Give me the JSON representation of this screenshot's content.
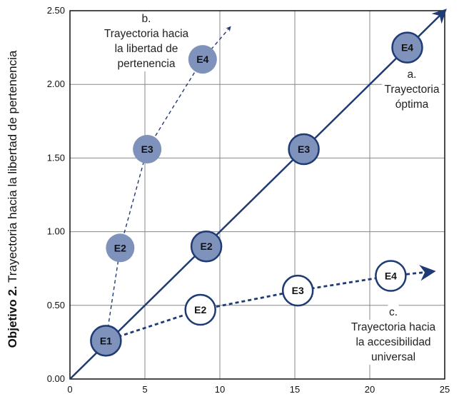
{
  "chart_data": {
    "type": "line",
    "title": "",
    "xlabel": "",
    "ylabel_bold": "Objetivo 2.",
    "ylabel": "Trayectoria hacia la libertad de pertenencia",
    "xlim": [
      0,
      25
    ],
    "ylim": [
      0,
      2.5
    ],
    "xticks": [
      "0",
      "5",
      "10",
      "15",
      "20",
      "25"
    ],
    "xtick_values": [
      0,
      5,
      10,
      15,
      20,
      25
    ],
    "yticks": [
      "0.00",
      "0.50",
      "1.00",
      "1.50",
      "2.00",
      "2.50"
    ],
    "ytick_values": [
      0,
      0.5,
      1,
      1.5,
      2,
      2.5
    ],
    "grid": true,
    "series": [
      {
        "name": "a. Trayectoria óptima",
        "label_lines": [
          "a.",
          "Trayectoria",
          "óptima"
        ],
        "style": "solid",
        "color": "#1f3b73",
        "points": [
          {
            "label": "E1",
            "x": 2.4,
            "y": 0.26
          },
          {
            "label": "E2",
            "x": 9.1,
            "y": 0.9
          },
          {
            "label": "E3",
            "x": 15.6,
            "y": 1.56
          },
          {
            "label": "E4",
            "x": 22.5,
            "y": 2.25
          }
        ],
        "arrow_to": {
          "x": 25,
          "y": 2.5
        }
      },
      {
        "name": "b. Trayectoria hacia la libertad de pertenencia",
        "label_lines": [
          "b.",
          "Trayectoria hacia",
          "la libertad de",
          "pertenencia"
        ],
        "style": "dashed",
        "color": "#1f3b73",
        "points": [
          {
            "label": "E2",
            "x": 3.35,
            "y": 0.89
          },
          {
            "label": "E3",
            "x": 5.15,
            "y": 1.56
          },
          {
            "label": "E4",
            "x": 8.85,
            "y": 2.17
          }
        ],
        "arrow_to": {
          "x": 10.7,
          "y": 2.39
        }
      },
      {
        "name": "c. Trayectoria hacia la accesibilidad universal",
        "label_lines": [
          "c.",
          "Trayectoria hacia",
          "la accesibilidad",
          "universal"
        ],
        "style": "dotted",
        "color": "#1f3b73",
        "points": [
          {
            "label": "E2",
            "x": 8.7,
            "y": 0.47
          },
          {
            "label": "E3",
            "x": 15.2,
            "y": 0.6
          },
          {
            "label": "E4",
            "x": 21.4,
            "y": 0.7
          }
        ],
        "arrow_to": {
          "x": 24.2,
          "y": 0.73
        }
      }
    ],
    "colors": {
      "filled": "#7f92bb",
      "stroke": "#1f3b73",
      "grid": "#888888"
    }
  }
}
